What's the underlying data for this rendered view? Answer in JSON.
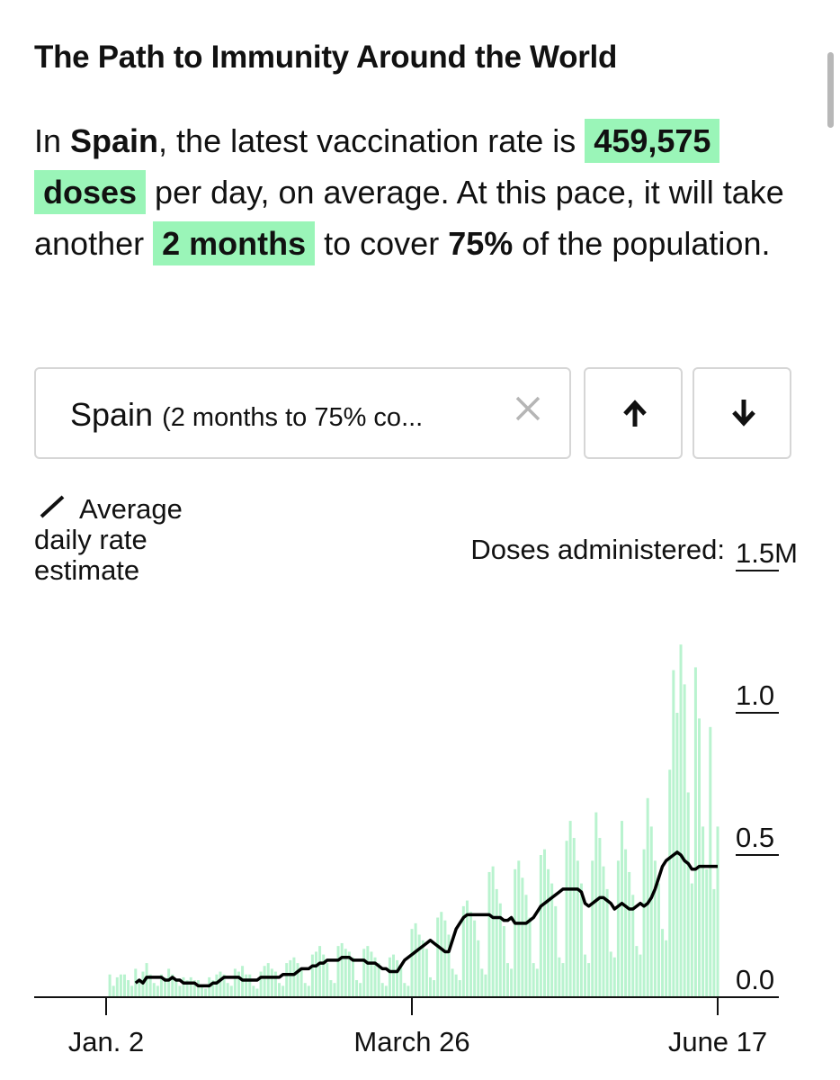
{
  "header": {
    "title": "The Path to Immunity Around the World"
  },
  "summary": [
    "In ",
    "Spain",
    ", the latest vaccination rate is ",
    "459,575 doses",
    " per day, on average. At this pace, it will take another ",
    "2 months",
    " to cover ",
    "75%",
    " of the population."
  ],
  "selector": {
    "country": "Spain",
    "detail": "(2 months to 75% co..."
  },
  "chart_data": {
    "type": "bar",
    "ylabel": "Doses administered:",
    "ylim": [
      0,
      1.5
    ],
    "yticks": [
      {
        "value": 0,
        "label": "0.0"
      },
      {
        "value": 0.5,
        "label": "0.5"
      },
      {
        "value": 1,
        "label": "1.0"
      },
      {
        "value": 1.5,
        "label": "1.5M"
      }
    ],
    "categories": [
      "Jan. 2",
      null,
      null,
      null,
      null,
      null,
      null,
      null,
      null,
      null,
      null,
      null,
      null,
      null,
      null,
      null,
      null,
      null,
      null,
      null,
      null,
      null,
      null,
      null,
      null,
      null,
      null,
      null,
      null,
      null,
      null,
      null,
      null,
      null,
      null,
      null,
      null,
      null,
      null,
      null,
      null,
      null,
      null,
      null,
      null,
      null,
      null,
      null,
      null,
      null,
      null,
      null,
      null,
      null,
      null,
      null,
      null,
      null,
      null,
      null,
      null,
      null,
      null,
      null,
      null,
      null,
      null,
      null,
      null,
      null,
      null,
      null,
      null,
      null,
      null,
      null,
      null,
      null,
      null,
      null,
      null,
      null,
      null,
      "March 26",
      null,
      null,
      null,
      null,
      null,
      null,
      null,
      null,
      null,
      null,
      null,
      null,
      null,
      null,
      null,
      null,
      null,
      null,
      null,
      null,
      null,
      null,
      null,
      null,
      null,
      null,
      null,
      null,
      null,
      null,
      null,
      null,
      null,
      null,
      null,
      null,
      null,
      null,
      null,
      null,
      null,
      null,
      null,
      null,
      null,
      null,
      null,
      null,
      null,
      null,
      null,
      null,
      null,
      null,
      null,
      null,
      null,
      null,
      null,
      null,
      null,
      null,
      null,
      null,
      null,
      null,
      null,
      null,
      null,
      null,
      null,
      null,
      null,
      null,
      null,
      null,
      null,
      null,
      null,
      null,
      null,
      null,
      "June 17"
    ],
    "series": [
      {
        "type": "bar",
        "color": "#b9f3cf",
        "values": [
          null,
          0.08,
          0.04,
          0.07,
          0.08,
          0.08,
          0.06,
          0.04,
          0.1,
          0.06,
          0.09,
          0.12,
          0.08,
          0.05,
          0.04,
          0.08,
          0.07,
          0.1,
          0.08,
          0.06,
          0.04,
          0.07,
          0.06,
          0.07,
          0.06,
          0.06,
          0.04,
          0.03,
          0.07,
          0.06,
          0.08,
          0.09,
          0.08,
          0.05,
          0.04,
          0.1,
          0.09,
          0.11,
          0.08,
          0.08,
          0.04,
          0.03,
          0.09,
          0.11,
          0.12,
          0.1,
          0.09,
          0.05,
          0.04,
          0.12,
          0.13,
          0.14,
          0.12,
          0.1,
          0.05,
          0.04,
          0.15,
          0.16,
          0.18,
          0.15,
          0.12,
          0.06,
          0.05,
          0.18,
          0.19,
          0.17,
          0.16,
          0.14,
          0.06,
          0.05,
          0.17,
          0.18,
          0.16,
          0.14,
          0.12,
          0.05,
          0.04,
          0.14,
          0.15,
          0.13,
          0.11,
          0.05,
          0.04,
          0.24,
          0.26,
          0.22,
          0.2,
          0.17,
          0.07,
          0.06,
          0.28,
          0.3,
          0.27,
          0.22,
          0.1,
          0.08,
          0.06,
          0.32,
          0.34,
          0.3,
          0.27,
          0.2,
          0.1,
          0.08,
          0.44,
          0.46,
          0.38,
          0.33,
          0.25,
          0.12,
          0.1,
          0.45,
          0.48,
          0.42,
          0.36,
          0.28,
          0.12,
          0.1,
          0.5,
          0.52,
          0.45,
          0.4,
          0.32,
          0.14,
          0.12,
          0.55,
          0.62,
          0.56,
          0.48,
          0.4,
          0.15,
          0.12,
          0.48,
          0.65,
          0.56,
          0.46,
          0.38,
          0.16,
          0.14,
          0.48,
          0.62,
          0.52,
          0.44,
          0.36,
          0.18,
          0.15,
          0.52,
          0.7,
          0.6,
          0.48,
          0.4,
          0.24,
          0.2,
          0.8,
          1.15,
          1.0,
          1.24,
          1.1,
          0.72,
          0.4,
          1.16,
          0.98,
          0.6,
          0.45,
          0.95,
          0.38,
          0.6
        ]
      },
      {
        "type": "line",
        "name": "Average daily rate estimate",
        "color": "#000000",
        "values": [
          null,
          null,
          null,
          null,
          null,
          null,
          null,
          null,
          0.05,
          0.06,
          0.05,
          0.07,
          0.07,
          0.07,
          0.07,
          0.07,
          0.06,
          0.06,
          0.07,
          0.06,
          0.06,
          0.05,
          0.05,
          0.05,
          0.05,
          0.04,
          0.04,
          0.04,
          0.04,
          0.05,
          0.05,
          0.06,
          0.07,
          0.07,
          0.07,
          0.07,
          0.07,
          0.06,
          0.06,
          0.06,
          0.06,
          0.06,
          0.07,
          0.07,
          0.07,
          0.07,
          0.07,
          0.07,
          0.08,
          0.08,
          0.08,
          0.08,
          0.09,
          0.1,
          0.1,
          0.1,
          0.11,
          0.11,
          0.12,
          0.12,
          0.13,
          0.13,
          0.13,
          0.13,
          0.14,
          0.14,
          0.14,
          0.13,
          0.13,
          0.13,
          0.13,
          0.12,
          0.12,
          0.12,
          0.11,
          0.1,
          0.1,
          0.09,
          0.09,
          0.09,
          0.11,
          0.13,
          0.14,
          0.15,
          0.16,
          0.17,
          0.18,
          0.19,
          0.2,
          0.19,
          0.18,
          0.17,
          0.16,
          0.16,
          0.2,
          0.24,
          0.26,
          0.28,
          0.29,
          0.29,
          0.29,
          0.29,
          0.29,
          0.29,
          0.29,
          0.28,
          0.28,
          0.28,
          0.27,
          0.27,
          0.28,
          0.26,
          0.26,
          0.26,
          0.26,
          0.27,
          0.28,
          0.3,
          0.32,
          0.33,
          0.34,
          0.35,
          0.36,
          0.37,
          0.38,
          0.38,
          0.38,
          0.38,
          0.38,
          0.37,
          0.33,
          0.32,
          0.33,
          0.34,
          0.35,
          0.35,
          0.34,
          0.33,
          0.31,
          0.32,
          0.33,
          0.32,
          0.31,
          0.31,
          0.32,
          0.33,
          0.32,
          0.33,
          0.35,
          0.38,
          0.42,
          0.46,
          0.48,
          0.49,
          0.5,
          0.51,
          0.5,
          0.48,
          0.47,
          0.45,
          0.45,
          0.46,
          0.46,
          0.46,
          0.46,
          0.46,
          0.46
        ]
      }
    ]
  }
}
